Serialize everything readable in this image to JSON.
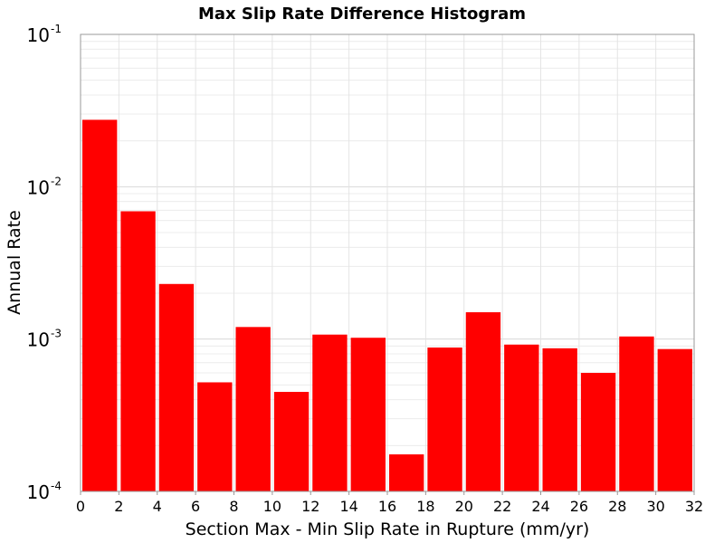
{
  "chart_data": {
    "type": "bar",
    "title": "Max Slip Rate Difference Histogram",
    "xlabel": "Section Max - Min Slip Rate in Rupture (mm/yr)",
    "ylabel": "Annual Rate",
    "x_scale": "linear",
    "y_scale": "log",
    "xlim": [
      0,
      32
    ],
    "ylim": [
      0.0001,
      0.1
    ],
    "bin_width": 2,
    "x_ticks": [
      "0",
      "2",
      "4",
      "6",
      "8",
      "10",
      "12",
      "14",
      "16",
      "18",
      "20",
      "22",
      "24",
      "26",
      "28",
      "30",
      "32"
    ],
    "y_ticks": [
      {
        "base": "10",
        "exp": "-4",
        "value": 0.0001
      },
      {
        "base": "10",
        "exp": "-3",
        "value": 0.001
      },
      {
        "base": "10",
        "exp": "-2",
        "value": 0.01
      },
      {
        "base": "10",
        "exp": "-1",
        "value": 0.1
      }
    ],
    "bins": [
      {
        "x": 1,
        "value": 0.0275
      },
      {
        "x": 3,
        "value": 0.0069
      },
      {
        "x": 5,
        "value": 0.0023
      },
      {
        "x": 7,
        "value": 0.00052
      },
      {
        "x": 9,
        "value": 0.0012
      },
      {
        "x": 11,
        "value": 0.00045
      },
      {
        "x": 13,
        "value": 0.00107
      },
      {
        "x": 15,
        "value": 0.00102
      },
      {
        "x": 17,
        "value": 0.000175
      },
      {
        "x": 19,
        "value": 0.00088
      },
      {
        "x": 21,
        "value": 0.0015
      },
      {
        "x": 23,
        "value": 0.00092
      },
      {
        "x": 25,
        "value": 0.00087
      },
      {
        "x": 27,
        "value": 0.0006
      },
      {
        "x": 29,
        "value": 0.00104
      },
      {
        "x": 31,
        "value": 0.00086
      }
    ],
    "bar_color": "#ff0000",
    "grid": true,
    "legend": "none"
  }
}
